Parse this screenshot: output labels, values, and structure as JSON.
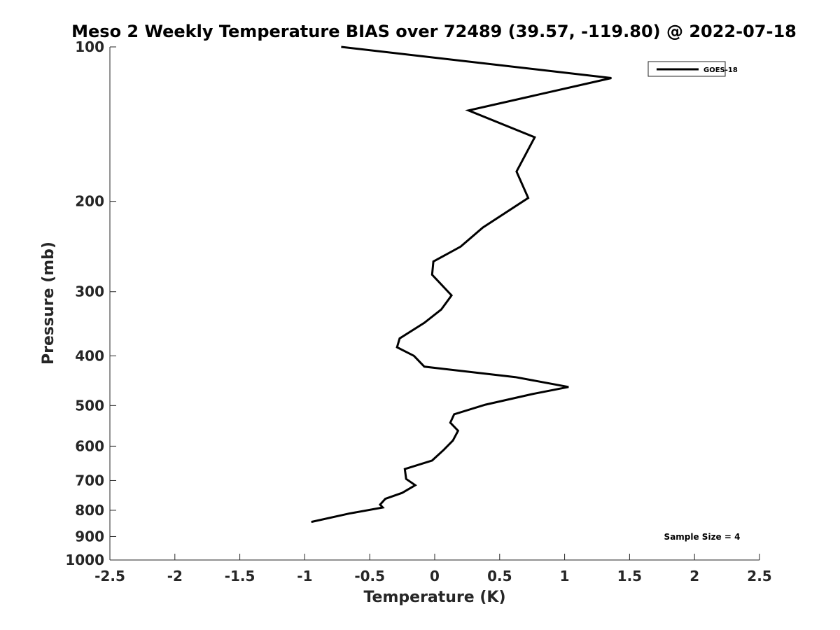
{
  "chart_data": {
    "type": "line",
    "title": "Meso 2 Weekly Temperature BIAS over 72489 (39.57, -119.80) @ 2022-07-18",
    "xlabel": "Temperature (K)",
    "ylabel": "Pressure (mb)",
    "xlim": [
      -2.5,
      2.5
    ],
    "ylim": [
      1000,
      100
    ],
    "yscale": "log",
    "y_reversed": true,
    "x_ticks": [
      "-2.5",
      "-2",
      "-1.5",
      "-1",
      "-0.5",
      "0",
      "0.5",
      "1",
      "1.5",
      "2",
      "2.5"
    ],
    "y_ticks": [
      "100",
      "200",
      "300",
      "400",
      "500",
      "600",
      "700",
      "800",
      "900",
      "1000"
    ],
    "grid": false,
    "legend_position": "top-right",
    "series": [
      {
        "name": "GOES-18",
        "color": "#000000",
        "x": [
          -0.72,
          1.36,
          0.26,
          0.77,
          0.63,
          0.72,
          0.37,
          0.2,
          -0.01,
          -0.02,
          0.13,
          0.05,
          -0.08,
          -0.27,
          -0.29,
          -0.16,
          -0.08,
          0.62,
          1.03,
          0.75,
          0.39,
          0.15,
          0.12,
          0.18,
          0.14,
          0.07,
          -0.02,
          -0.23,
          -0.22,
          -0.15,
          -0.25,
          -0.38,
          -0.42,
          -0.4,
          -0.66,
          -0.95
        ],
        "y": [
          100,
          115,
          133,
          150,
          175,
          197,
          225,
          245,
          262,
          278,
          305,
          325,
          345,
          370,
          385,
          400,
          420,
          440,
          460,
          475,
          498,
          520,
          540,
          560,
          585,
          610,
          640,
          665,
          695,
          715,
          740,
          760,
          780,
          790,
          812,
          843
        ]
      }
    ],
    "annotations": [
      "Sample Size = 4"
    ]
  }
}
